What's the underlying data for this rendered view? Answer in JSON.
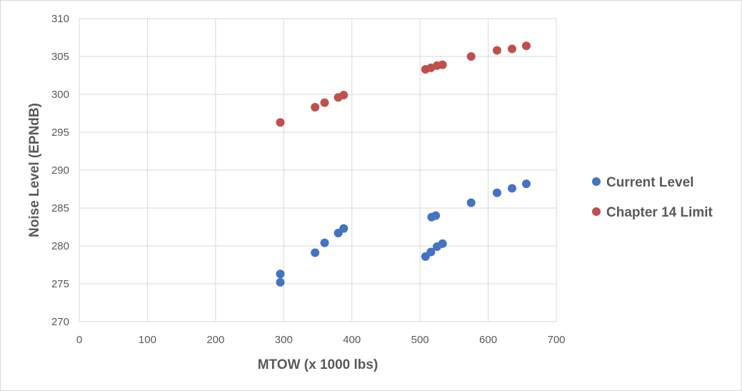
{
  "chart_data": {
    "type": "scatter",
    "title": "",
    "xlabel": "MTOW (x 1000 lbs)",
    "ylabel": "Noise Level (EPNdB)",
    "xlim": [
      0,
      700
    ],
    "ylim": [
      270,
      310
    ],
    "x_ticks": [
      "0",
      "100",
      "200",
      "300",
      "400",
      "500",
      "600",
      "700"
    ],
    "y_ticks": [
      "270",
      "275",
      "280",
      "285",
      "290",
      "295",
      "300",
      "305",
      "310"
    ],
    "grid": true,
    "legend_position": "right",
    "series": [
      {
        "name": "Current Level",
        "color": "#4472c4",
        "points": [
          [
            295,
            276.3
          ],
          [
            295,
            275.2
          ],
          [
            346,
            279.1
          ],
          [
            360,
            280.4
          ],
          [
            380,
            281.7
          ],
          [
            388,
            282.3
          ],
          [
            508,
            278.6
          ],
          [
            516,
            279.2
          ],
          [
            525,
            279.9
          ],
          [
            533,
            280.3
          ],
          [
            517,
            283.8
          ],
          [
            523,
            284.0
          ],
          [
            575,
            285.7
          ],
          [
            613,
            287.0
          ],
          [
            635,
            287.6
          ],
          [
            656,
            288.2
          ]
        ]
      },
      {
        "name": "Chapter 14 Limit",
        "color": "#c0504d",
        "points": [
          [
            295,
            296.3
          ],
          [
            346,
            298.3
          ],
          [
            360,
            298.9
          ],
          [
            380,
            299.6
          ],
          [
            388,
            299.9
          ],
          [
            508,
            303.3
          ],
          [
            516,
            303.5
          ],
          [
            525,
            303.8
          ],
          [
            533,
            303.9
          ],
          [
            575,
            305.0
          ],
          [
            613,
            305.8
          ],
          [
            635,
            306.0
          ],
          [
            656,
            306.4
          ]
        ]
      }
    ]
  }
}
